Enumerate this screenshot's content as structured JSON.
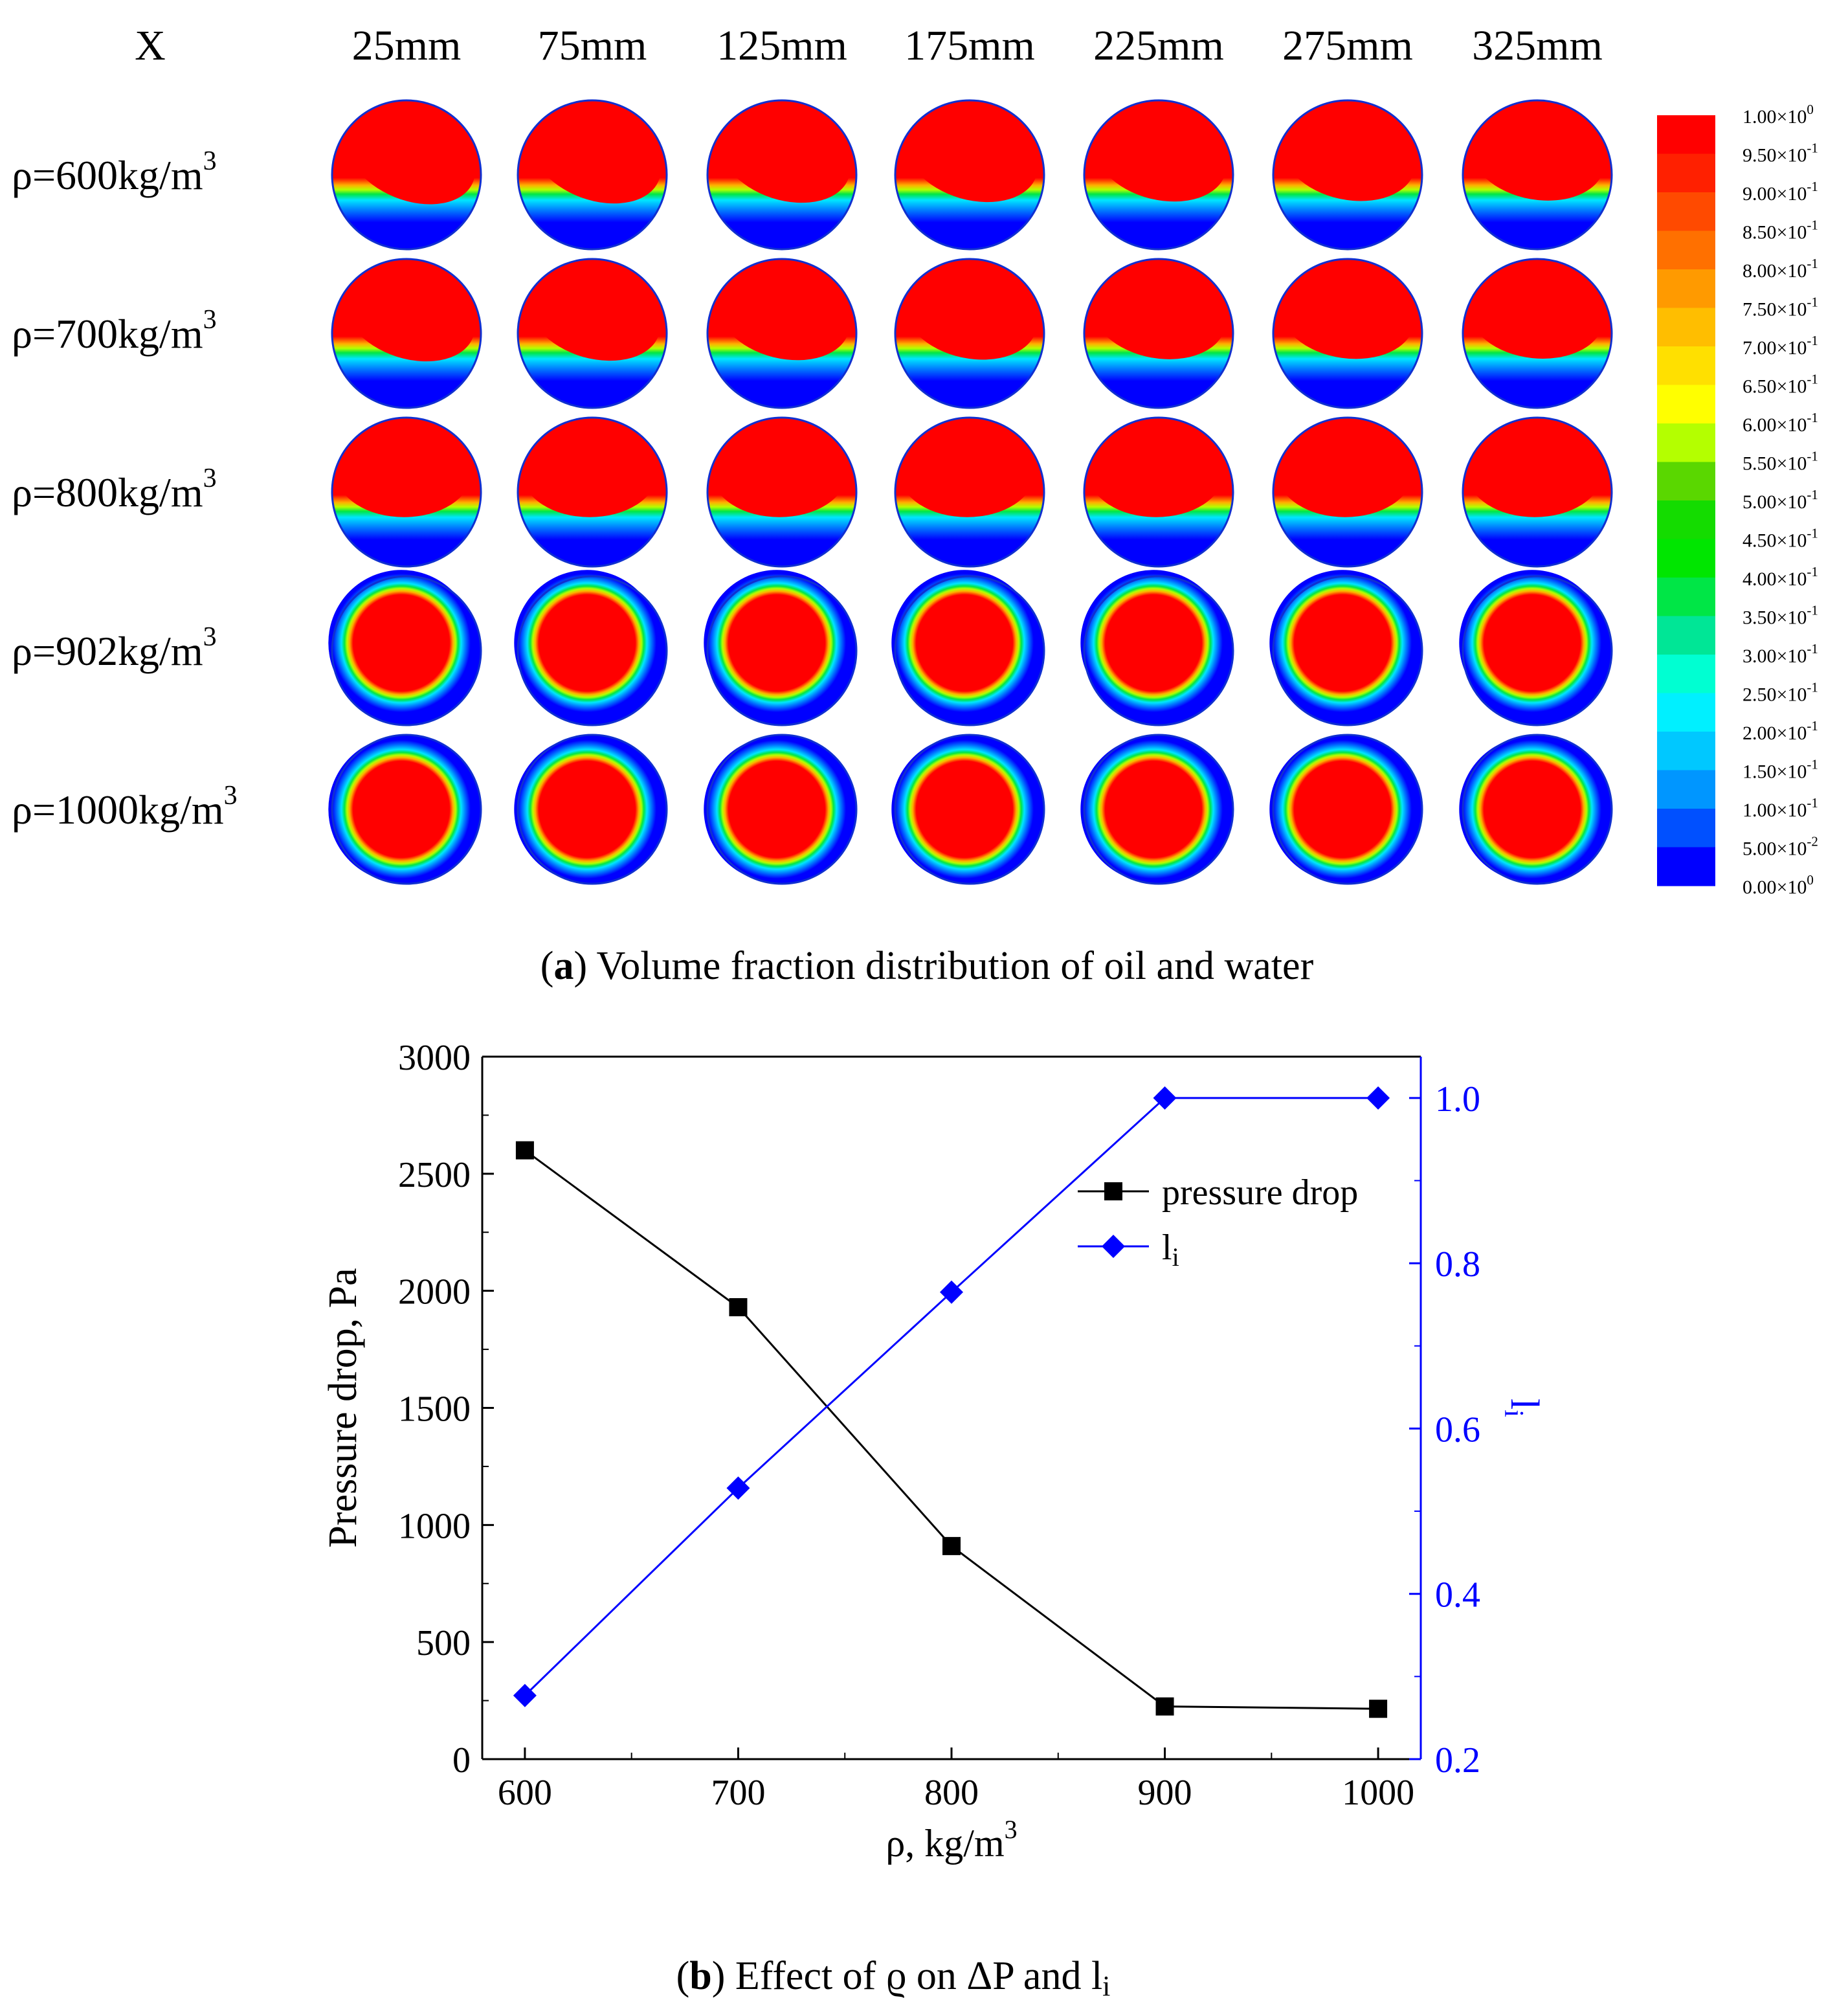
{
  "panel_a": {
    "x_label": "X",
    "positions": [
      "25mm",
      "75mm",
      "125mm",
      "175mm",
      "225mm",
      "275mm",
      "325mm"
    ],
    "rows": [
      {
        "prefix": "ρ=600kg/m",
        "sup": "3"
      },
      {
        "prefix": "ρ=700kg/m",
        "sup": "3"
      },
      {
        "prefix": "ρ=800kg/m",
        "sup": "3"
      },
      {
        "prefix": "ρ=902kg/m",
        "sup": "3"
      },
      {
        "prefix": "ρ=1000kg/m",
        "sup": "3"
      }
    ],
    "colorbar_labels": [
      {
        "m": "1.00×10",
        "e": "0"
      },
      {
        "m": "9.50×10",
        "e": "-1"
      },
      {
        "m": "9.00×10",
        "e": "-1"
      },
      {
        "m": "8.50×10",
        "e": "-1"
      },
      {
        "m": "8.00×10",
        "e": "-1"
      },
      {
        "m": "7.50×10",
        "e": "-1"
      },
      {
        "m": "7.00×10",
        "e": "-1"
      },
      {
        "m": "6.50×10",
        "e": "-1"
      },
      {
        "m": "6.00×10",
        "e": "-1"
      },
      {
        "m": "5.50×10",
        "e": "-1"
      },
      {
        "m": "5.00×10",
        "e": "-1"
      },
      {
        "m": "4.50×10",
        "e": "-1"
      },
      {
        "m": "4.00×10",
        "e": "-1"
      },
      {
        "m": "3.50×10",
        "e": "-1"
      },
      {
        "m": "3.00×10",
        "e": "-1"
      },
      {
        "m": "2.50×10",
        "e": "-1"
      },
      {
        "m": "2.00×10",
        "e": "-1"
      },
      {
        "m": "1.50×10",
        "e": "-1"
      },
      {
        "m": "1.00×10",
        "e": "-1"
      },
      {
        "m": "5.00×10",
        "e": "-2"
      },
      {
        "m": "0.00×10",
        "e": "0"
      }
    ],
    "colorbar_colors": [
      "#ff0000",
      "#ff2000",
      "#ff4a00",
      "#ff7000",
      "#ff9a00",
      "#ffbe00",
      "#ffe000",
      "#ffff00",
      "#b4ff00",
      "#5ad700",
      "#14dc00",
      "#00e600",
      "#00e646",
      "#00e696",
      "#00ffd2",
      "#00f0ff",
      "#00c8ff",
      "#0096ff",
      "#0050ff",
      "#0000ff"
    ],
    "caption_bold": "a",
    "caption_text": " Volume fraction distribution of oil and water"
  },
  "chart_data": {
    "type": "line",
    "x_axis": {
      "label_prefix": "ρ, kg/m",
      "label_sup": "3",
      "range": [
        580,
        1020
      ],
      "ticks": [
        600,
        700,
        800,
        900,
        1000
      ]
    },
    "y_left": {
      "label": "Pressure drop, Pa",
      "range": [
        0,
        3000
      ],
      "ticks": [
        0,
        500,
        1000,
        1500,
        2000,
        2500,
        3000
      ]
    },
    "y_right": {
      "label": "l",
      "label_sub": "i",
      "range": [
        0.2,
        1.05
      ],
      "ticks": [
        0.2,
        0.4,
        0.6,
        0.8,
        1.0
      ],
      "tick_labels": [
        "0.2",
        "0.4",
        "0.6",
        "0.8",
        "1.0"
      ],
      "color": "#0000ff"
    },
    "series": [
      {
        "name": "pressure drop",
        "axis": "left",
        "color": "#000000",
        "marker": "square",
        "x": [
          600,
          700,
          800,
          900,
          1000
        ],
        "y": [
          2600,
          1930,
          910,
          225,
          215
        ]
      },
      {
        "name": "l",
        "name_sub": "i",
        "axis": "right",
        "color": "#0000ff",
        "marker": "diamond",
        "x": [
          600,
          700,
          800,
          900,
          1000
        ],
        "y": [
          0.277,
          0.528,
          0.765,
          1.0,
          1.0
        ]
      }
    ],
    "legend_position": "upper-right",
    "grid": false
  },
  "panel_b": {
    "caption_bold": "b",
    "caption_text": " Effect of ϱ on ΔP and l",
    "caption_sub": "i"
  }
}
